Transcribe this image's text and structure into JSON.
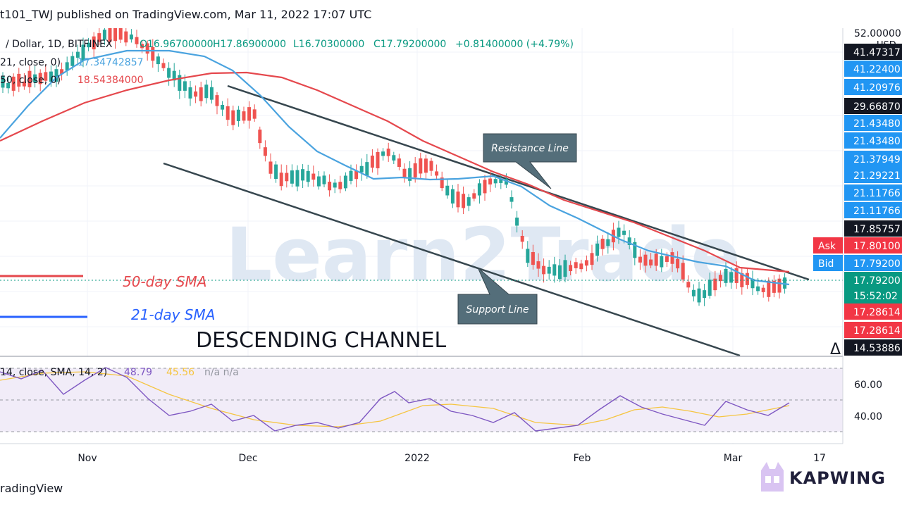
{
  "header": {
    "title": "t101_TWJ published on TradingView.com, Mar 11, 2022 17:07 UTC"
  },
  "legend": {
    "symbol": "/ Dollar, 1D, BITFINEX",
    "open": "O16.96700000",
    "high": "H17.86900000",
    "low": "L16.70300000",
    "close": "C17.79200000",
    "change": "+0.81400000 (+4.79%)",
    "ma21": "21, close, 0)",
    "ma21_value": "17.34742857",
    "ma50": "50, close, 0)",
    "ma50_value": "18.54384000"
  },
  "annotations": {
    "resistance": "Resistance Line",
    "support": "Support Line",
    "sma50": "50-day SMA",
    "sma21": "21-day SMA",
    "channel": "DESCENDING CHANNEL",
    "watermark": "Learn2Trade"
  },
  "price_axis": {
    "currency": "USD",
    "top_value": "52.00000",
    "labels": [
      {
        "text": "41.47317",
        "color": "#131722"
      },
      {
        "text": "41.22400",
        "color": "#2196f3"
      },
      {
        "text": "41.20976",
        "color": "#2196f3"
      },
      {
        "text": "29.66870",
        "color": "#131722"
      },
      {
        "text": "21.43480",
        "color": "#2196f3"
      },
      {
        "text": "21.43480",
        "color": "#2196f3"
      },
      {
        "text": "21.37949",
        "color": "#2196f3"
      },
      {
        "text": "21.29221",
        "color": "#2196f3"
      },
      {
        "text": "21.11766",
        "color": "#2196f3"
      },
      {
        "text": "21.11766",
        "color": "#2196f3"
      },
      {
        "text": "17.85757",
        "color": "#131722"
      },
      {
        "text": "17.80100",
        "color": "#f23645",
        "tag": "Ask"
      },
      {
        "text": "17.79200",
        "color": "#2196f3",
        "tag": "Bid"
      },
      {
        "text": "17.79200",
        "color": "#089981"
      },
      {
        "text": "15:52:02",
        "color": "#089981"
      },
      {
        "text": "17.28614",
        "color": "#f23645"
      },
      {
        "text": "17.28614",
        "color": "#f23645"
      },
      {
        "text": "14.53886",
        "color": "#131722"
      }
    ]
  },
  "rsi": {
    "legend": "14, close, SMA, 14, 2)",
    "value": "48.79",
    "sma_value": "45.56",
    "na": "n/a n/a",
    "ticks": [
      "60.00",
      "40.00"
    ]
  },
  "time_axis": {
    "labels": [
      "Nov",
      "Dec",
      "2022",
      "Feb",
      "Mar",
      "17"
    ]
  },
  "footer": {
    "text": "radingView"
  },
  "badge": {
    "text": "KAPWING"
  },
  "colors": {
    "up": "#26a69a",
    "down": "#ef5350",
    "sma21": "#4aa3df",
    "sma50": "#e5484d",
    "rsi": "#7e57c2",
    "rsi_sma": "#f5c542",
    "channel": "#37474f"
  },
  "chart_data": {
    "type": "candlestick",
    "ohlc": {
      "open": 16.967,
      "high": 17.869,
      "low": 16.703,
      "close": 17.792
    },
    "series": [
      {
        "name": "21-day SMA",
        "last": 17.34742857
      },
      {
        "name": "50-day SMA",
        "last": 18.54384
      }
    ],
    "rsi": {
      "value": 48.79,
      "sma": 45.56,
      "levels": [
        60,
        40
      ]
    },
    "current_price": 17.792
  }
}
